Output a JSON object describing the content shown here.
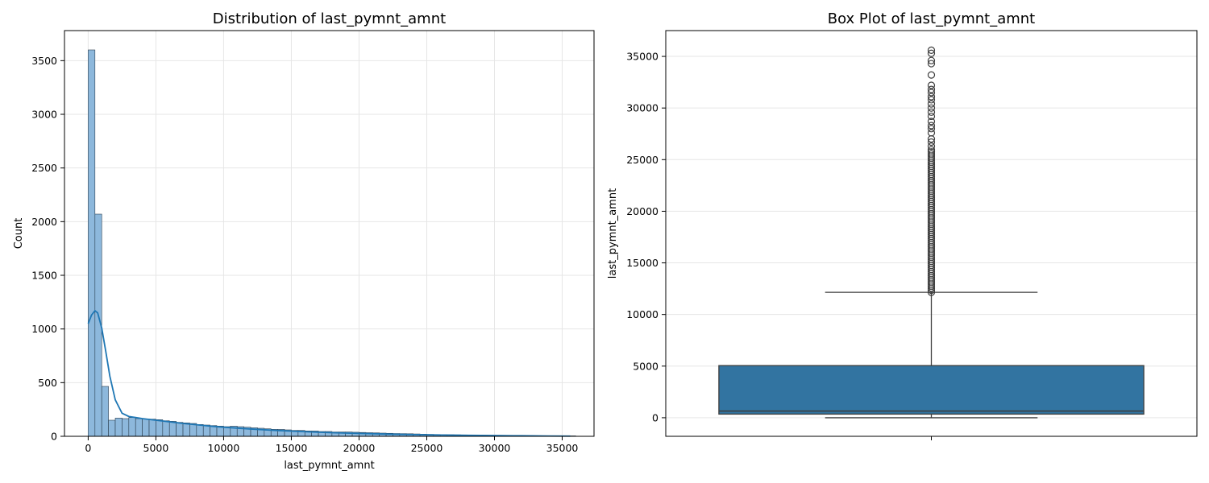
{
  "colors": {
    "hist_fill": "#8db8dc",
    "hist_edge": "#2b3e50",
    "kde_line": "#1f77b4",
    "box_fill": "#3274a1",
    "box_edge": "#3d3d3d",
    "grid": "#e6e6e6"
  },
  "chart_data": [
    {
      "type": "histogram",
      "title": "Distribution of last_pymnt_amnt",
      "xlabel": "last_pymnt_amnt",
      "ylabel": "Count",
      "xlim": [
        -1750,
        37350
      ],
      "ylim": [
        0,
        3780
      ],
      "xticks": [
        0,
        5000,
        10000,
        15000,
        20000,
        25000,
        30000,
        35000
      ],
      "yticks": [
        0,
        500,
        1000,
        1500,
        2000,
        2500,
        3000,
        3500
      ],
      "grid": true,
      "bin_start": 0,
      "bin_width": 500,
      "counts": [
        3600,
        2070,
        465,
        150,
        170,
        165,
        175,
        165,
        160,
        160,
        155,
        145,
        140,
        130,
        125,
        120,
        110,
        105,
        100,
        95,
        90,
        95,
        90,
        85,
        80,
        75,
        70,
        65,
        65,
        60,
        55,
        55,
        50,
        50,
        45,
        45,
        40,
        40,
        40,
        38,
        36,
        34,
        32,
        30,
        28,
        26,
        25,
        24,
        22,
        20,
        18,
        17,
        16,
        15,
        14,
        13,
        12,
        11,
        10,
        9,
        8,
        8,
        7,
        7,
        6,
        6,
        5,
        5,
        5,
        4,
        4,
        4
      ],
      "kde": {
        "x": [
          0,
          250,
          500,
          700,
          1000,
          1300,
          1600,
          2000,
          2500,
          3000,
          3500,
          4000,
          5000,
          6000,
          7000,
          8000,
          9000,
          10000,
          12000,
          14000,
          16000,
          18000,
          20000,
          22000,
          24000,
          26000,
          28000,
          30000,
          32000,
          34000,
          35600
        ],
        "y": [
          1050,
          1130,
          1170,
          1150,
          1010,
          790,
          560,
          340,
          215,
          185,
          175,
          165,
          150,
          135,
          120,
          108,
          95,
          85,
          68,
          54,
          43,
          34,
          27,
          21,
          16,
          12,
          9,
          7,
          5,
          3,
          2
        ]
      }
    },
    {
      "type": "box",
      "title": "Box Plot of last_pymnt_amnt",
      "xlabel": "",
      "ylabel": "last_pymnt_amnt",
      "ylim": [
        -1800,
        37500
      ],
      "yticks": [
        0,
        5000,
        10000,
        15000,
        20000,
        25000,
        30000,
        35000
      ],
      "grid": true,
      "whisker_low": 0,
      "q1": 350,
      "median": 650,
      "q3": 5050,
      "whisker_high": 12150,
      "outlier_range": [
        12150,
        26000
      ],
      "outliers_sparse": [
        26300,
        26700,
        27000,
        27600,
        28000,
        28300,
        28700,
        29200,
        29600,
        30000,
        30400,
        30800,
        31100,
        31500,
        31800,
        32200,
        33200,
        34300,
        34600,
        35300,
        35600
      ]
    }
  ]
}
